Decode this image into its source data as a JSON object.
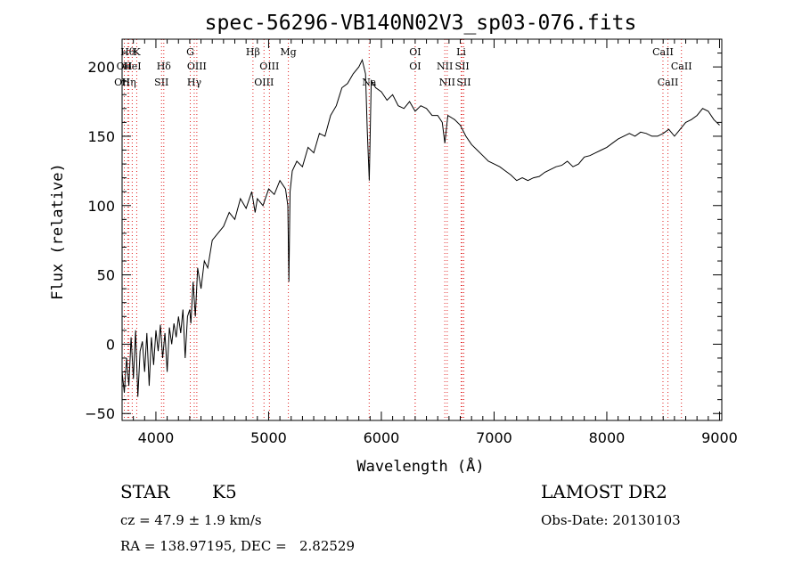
{
  "chart_data": {
    "type": "line",
    "title": "spec-56296-VB140N02V3_sp03-076.fits",
    "xlabel": "Wavelength (Å)",
    "ylabel": "Flux (relative)",
    "xlim": [
      3700,
      9020
    ],
    "ylim": [
      -55,
      220
    ],
    "xticks": [
      4000,
      5000,
      6000,
      7000,
      8000,
      9000
    ],
    "yticks": [
      -50,
      0,
      50,
      100,
      150,
      200
    ],
    "grid": false,
    "line_color": "#000000",
    "marker_line_color": "#e02020",
    "series": [
      {
        "values": [
          [
            3700,
            -20
          ],
          [
            3720,
            -35
          ],
          [
            3740,
            -10
          ],
          [
            3760,
            -30
          ],
          [
            3780,
            5
          ],
          [
            3800,
            -25
          ],
          [
            3820,
            10
          ],
          [
            3840,
            -38
          ],
          [
            3860,
            -5
          ],
          [
            3880,
            2
          ],
          [
            3900,
            -20
          ],
          [
            3920,
            8
          ],
          [
            3940,
            -30
          ],
          [
            3960,
            5
          ],
          [
            3980,
            -15
          ],
          [
            4000,
            10
          ],
          [
            4020,
            -5
          ],
          [
            4040,
            14
          ],
          [
            4060,
            -10
          ],
          [
            4080,
            8
          ],
          [
            4100,
            -20
          ],
          [
            4120,
            12
          ],
          [
            4140,
            0
          ],
          [
            4160,
            15
          ],
          [
            4180,
            5
          ],
          [
            4200,
            20
          ],
          [
            4220,
            8
          ],
          [
            4240,
            25
          ],
          [
            4260,
            -10
          ],
          [
            4280,
            20
          ],
          [
            4300,
            25
          ],
          [
            4310,
            15
          ],
          [
            4330,
            45
          ],
          [
            4350,
            20
          ],
          [
            4370,
            55
          ],
          [
            4400,
            40
          ],
          [
            4430,
            60
          ],
          [
            4460,
            55
          ],
          [
            4500,
            75
          ],
          [
            4550,
            80
          ],
          [
            4600,
            85
          ],
          [
            4650,
            95
          ],
          [
            4700,
            90
          ],
          [
            4750,
            105
          ],
          [
            4800,
            98
          ],
          [
            4850,
            110
          ],
          [
            4880,
            95
          ],
          [
            4900,
            105
          ],
          [
            4950,
            100
          ],
          [
            5000,
            112
          ],
          [
            5050,
            108
          ],
          [
            5100,
            118
          ],
          [
            5150,
            112
          ],
          [
            5170,
            100
          ],
          [
            5180,
            45
          ],
          [
            5190,
            110
          ],
          [
            5210,
            125
          ],
          [
            5250,
            132
          ],
          [
            5300,
            128
          ],
          [
            5350,
            142
          ],
          [
            5400,
            138
          ],
          [
            5450,
            152
          ],
          [
            5500,
            150
          ],
          [
            5550,
            165
          ],
          [
            5600,
            172
          ],
          [
            5650,
            185
          ],
          [
            5700,
            188
          ],
          [
            5750,
            195
          ],
          [
            5800,
            200
          ],
          [
            5830,
            205
          ],
          [
            5860,
            195
          ],
          [
            5875,
            155
          ],
          [
            5893,
            118
          ],
          [
            5910,
            190
          ],
          [
            5950,
            185
          ],
          [
            6000,
            182
          ],
          [
            6050,
            176
          ],
          [
            6100,
            180
          ],
          [
            6150,
            172
          ],
          [
            6200,
            170
          ],
          [
            6250,
            175
          ],
          [
            6300,
            168
          ],
          [
            6350,
            172
          ],
          [
            6400,
            170
          ],
          [
            6450,
            165
          ],
          [
            6500,
            165
          ],
          [
            6540,
            160
          ],
          [
            6563,
            145
          ],
          [
            6590,
            165
          ],
          [
            6650,
            162
          ],
          [
            6700,
            158
          ],
          [
            6750,
            150
          ],
          [
            6800,
            144
          ],
          [
            6850,
            140
          ],
          [
            6900,
            136
          ],
          [
            6950,
            132
          ],
          [
            7000,
            130
          ],
          [
            7050,
            128
          ],
          [
            7100,
            125
          ],
          [
            7150,
            122
          ],
          [
            7200,
            118
          ],
          [
            7250,
            120
          ],
          [
            7300,
            118
          ],
          [
            7350,
            120
          ],
          [
            7400,
            121
          ],
          [
            7450,
            124
          ],
          [
            7500,
            126
          ],
          [
            7550,
            128
          ],
          [
            7600,
            129
          ],
          [
            7650,
            132
          ],
          [
            7700,
            128
          ],
          [
            7750,
            130
          ],
          [
            7800,
            135
          ],
          [
            7850,
            136
          ],
          [
            7900,
            138
          ],
          [
            7950,
            140
          ],
          [
            8000,
            142
          ],
          [
            8050,
            145
          ],
          [
            8100,
            148
          ],
          [
            8150,
            150
          ],
          [
            8200,
            152
          ],
          [
            8250,
            150
          ],
          [
            8300,
            153
          ],
          [
            8350,
            152
          ],
          [
            8400,
            150
          ],
          [
            8450,
            150
          ],
          [
            8500,
            152
          ],
          [
            8550,
            155
          ],
          [
            8600,
            150
          ],
          [
            8650,
            155
          ],
          [
            8700,
            160
          ],
          [
            8750,
            162
          ],
          [
            8800,
            165
          ],
          [
            8850,
            170
          ],
          [
            8900,
            168
          ],
          [
            8950,
            162
          ],
          [
            9000,
            158
          ]
        ]
      }
    ],
    "line_markers": [
      {
        "wl": 3750,
        "label": "Hθ",
        "row": 0
      },
      {
        "wl": 3830,
        "label": "K",
        "row": 0
      },
      {
        "wl": 3720,
        "label": "OII",
        "row": 1
      },
      {
        "wl": 3790,
        "label": "HeI",
        "row": 1
      },
      {
        "wl": 3700,
        "label": "OII",
        "row": 2
      },
      {
        "wl": 3760,
        "label": "Hη",
        "row": 2
      },
      {
        "wl": 4070,
        "label": "Hδ",
        "row": 1
      },
      {
        "wl": 4050,
        "label": "SII",
        "row": 2
      },
      {
        "wl": 4305,
        "label": "G",
        "row": 0
      },
      {
        "wl": 4363,
        "label": "OIII",
        "row": 1
      },
      {
        "wl": 4340,
        "label": "Hγ",
        "row": 2
      },
      {
        "wl": 4861,
        "label": "Hβ",
        "row": 0
      },
      {
        "wl": 5007,
        "label": "OIII",
        "row": 1
      },
      {
        "wl": 4959,
        "label": "OIII",
        "row": 2
      },
      {
        "wl": 5175,
        "label": "Mg",
        "row": 0
      },
      {
        "wl": 5892,
        "label": "Na",
        "row": 2
      },
      {
        "wl": 6300,
        "label": "OI",
        "row": 0
      },
      {
        "wl": 6300,
        "label": "OI",
        "row": 1
      },
      {
        "wl": 6563,
        "label": "NII",
        "row": 1
      },
      {
        "wl": 6584,
        "label": "NII",
        "row": 2
      },
      {
        "wl": 6708,
        "label": "Li",
        "row": 0
      },
      {
        "wl": 6717,
        "label": "SII",
        "row": 1
      },
      {
        "wl": 6731,
        "label": "SII",
        "row": 2
      },
      {
        "wl": 8498,
        "label": "CaII",
        "row": 0
      },
      {
        "wl": 8662,
        "label": "CaII",
        "row": 1
      },
      {
        "wl": 8542,
        "label": "CaII",
        "row": 2
      }
    ]
  },
  "footer": {
    "class_label": "STAR",
    "subclass": "K5",
    "survey": "LAMOST DR2",
    "cz": "cz = 47.9 ± 1.9 km/s",
    "obs_date": "Obs-Date: 20130103",
    "coords": "RA = 138.97195, DEC =   2.82529"
  }
}
